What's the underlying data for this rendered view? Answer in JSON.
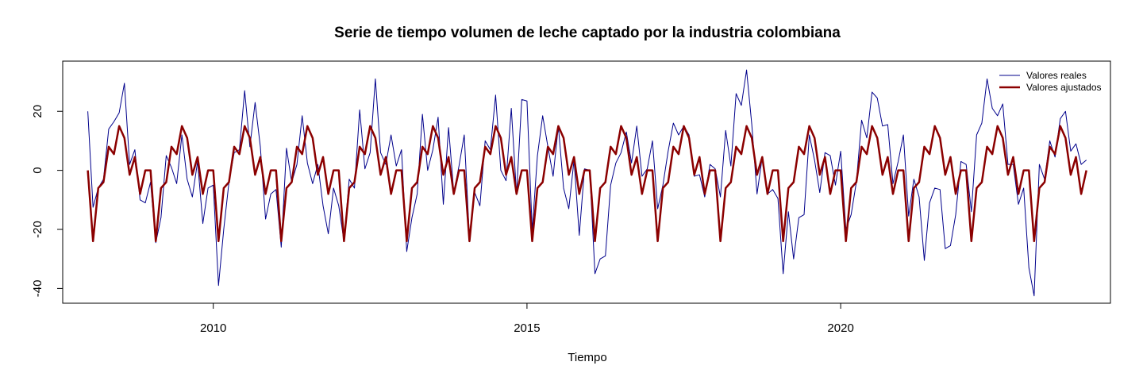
{
  "chart_data": {
    "type": "line",
    "title": "Serie de tiempo volumen de leche captado por la industria colombiana",
    "xlabel": "Tiempo",
    "ylabel": "",
    "xlim": [
      2007.6,
      2024.3
    ],
    "ylim": [
      -45,
      37
    ],
    "x_ticks": [
      2010,
      2015,
      2020
    ],
    "y_ticks": [
      -40,
      -20,
      0,
      20
    ],
    "x_tick_labels": [
      "2010",
      "2015",
      "2020"
    ],
    "y_tick_labels": [
      "-40",
      "-20",
      "0",
      "20"
    ],
    "x_start": 2008.0,
    "x_step": 0.0833333,
    "grid": false,
    "legend_position": "top-right",
    "series": [
      {
        "name": "Valores reales",
        "color": "#00008B",
        "values": [
          20,
          -12.5,
          -6,
          -3,
          14,
          16.5,
          19.5,
          29.5,
          2,
          7,
          -10,
          -11,
          -4,
          -24.5,
          -16,
          5,
          1,
          -4.5,
          12,
          -3,
          -9,
          3,
          -18,
          -6,
          -5,
          -39,
          -20,
          -4,
          6,
          7,
          27,
          8,
          23,
          8,
          -16.5,
          -8,
          -6.5,
          -26,
          7.5,
          -4,
          2,
          18.5,
          2.5,
          -4.5,
          2,
          -12,
          -21.5,
          -6,
          -12,
          -24,
          -3,
          -6,
          20.5,
          0.5,
          6,
          31,
          6,
          2,
          12,
          1.5,
          7,
          -27.5,
          -16,
          -8,
          19,
          0,
          7,
          18,
          -11.5,
          14.5,
          -7.5,
          1.5,
          12,
          -23,
          -7.5,
          -12,
          10,
          7,
          25.5,
          0,
          -3.5,
          21,
          -8,
          24,
          23.5,
          -20.5,
          5,
          18.5,
          8,
          -2,
          15,
          -6,
          -13,
          3.5,
          -22,
          0.5,
          0,
          -35,
          -30,
          -29,
          -5,
          2.5,
          6,
          13,
          2.5,
          15,
          -2,
          0.5,
          10,
          -13,
          -5,
          6.5,
          16,
          12,
          15,
          12,
          -2,
          -1.5,
          -9,
          2,
          0.5,
          -9,
          13.5,
          1.5,
          26,
          22,
          34,
          15.5,
          -8,
          4.5,
          -8,
          -6.5,
          -9.5,
          -35,
          -14,
          -30,
          -16,
          -15,
          12,
          3.5,
          -7.5,
          6,
          5,
          -5,
          6.5,
          -20,
          -15,
          -4,
          17,
          11,
          26.5,
          24.5,
          15,
          15.5,
          -4.5,
          3,
          12,
          -15.5,
          -3,
          -9,
          -30.5,
          -11,
          -6,
          -6.5,
          -26.5,
          -25.5,
          -15,
          3,
          2,
          -14,
          12,
          16,
          31,
          21,
          18.5,
          22.5,
          2,
          2,
          -11.5,
          -6,
          -33,
          -42.5,
          2,
          -3,
          10,
          4.5,
          17.5,
          20,
          6.5,
          9,
          2,
          3.5
        ]
      },
      {
        "name": "Valores ajustados",
        "color": "#8B0000",
        "values": [
          0,
          -24,
          -6,
          -4,
          8,
          5.5,
          15,
          11,
          -1.5,
          4.5,
          -8,
          0,
          0,
          -24,
          -6,
          -4,
          8,
          5.5,
          15,
          11,
          -1.5,
          4.5,
          -8,
          0,
          0,
          -24,
          -6,
          -4,
          8,
          5.5,
          15,
          11,
          -1.5,
          4.5,
          -8,
          0,
          0,
          -24,
          -6,
          -4,
          8,
          5.5,
          15,
          11,
          -1.5,
          4.5,
          -8,
          0,
          0,
          -24,
          -6,
          -4,
          8,
          5.5,
          15,
          11,
          -1.5,
          4.5,
          -8,
          0,
          0,
          -24,
          -6,
          -4,
          8,
          5.5,
          15,
          11,
          -1.5,
          4.5,
          -8,
          0,
          0,
          -24,
          -6,
          -4,
          8,
          5.5,
          15,
          11,
          -1.5,
          4.5,
          -8,
          0,
          0,
          -24,
          -6,
          -4,
          8,
          5.5,
          15,
          11,
          -1.5,
          4.5,
          -8,
          0,
          0,
          -24,
          -6,
          -4,
          8,
          5.5,
          15,
          11,
          -1.5,
          4.5,
          -8,
          0,
          0,
          -24,
          -6,
          -4,
          8,
          5.5,
          15,
          11,
          -1.5,
          4.5,
          -8,
          0,
          0,
          -24,
          -6,
          -4,
          8,
          5.5,
          15,
          11,
          -1.5,
          4.5,
          -8,
          0,
          0,
          -24,
          -6,
          -4,
          8,
          5.5,
          15,
          11,
          -1.5,
          4.5,
          -8,
          0,
          0,
          -24,
          -6,
          -4,
          8,
          5.5,
          15,
          11,
          -1.5,
          4.5,
          -8,
          0,
          0,
          -24,
          -6,
          -4,
          8,
          5.5,
          15,
          11,
          -1.5,
          4.5,
          -8,
          0,
          0,
          -24,
          -6,
          -4,
          8,
          5.5,
          15,
          11,
          -1.5,
          4.5,
          -8,
          0,
          0,
          -24,
          -6,
          -4,
          8,
          5.5,
          15,
          11,
          -1.5,
          4.5,
          -8,
          0
        ]
      }
    ]
  }
}
